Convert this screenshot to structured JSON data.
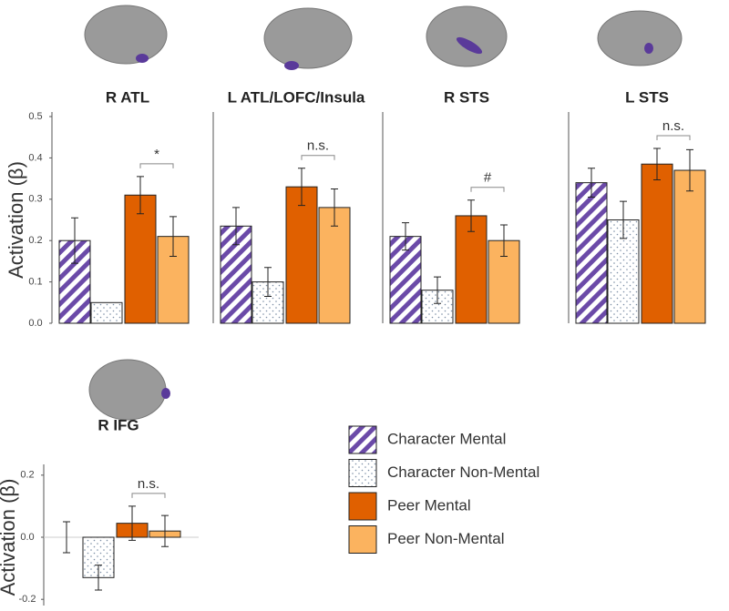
{
  "legend": [
    {
      "name": "Character Mental",
      "color": "#6b4aa8",
      "pattern": "hatch"
    },
    {
      "name": "Character Non-Mental",
      "color": "#7d8fa6",
      "pattern": "dots"
    },
    {
      "name": "Peer Mental",
      "color": "#e06000",
      "pattern": "solid"
    },
    {
      "name": "Peer Non-Mental",
      "color": "#fbb35f",
      "pattern": "solid"
    }
  ],
  "chart_data": [
    {
      "type": "bar",
      "title": "R ATL",
      "ylabel": "Activation (β)",
      "ylim": [
        0,
        0.5
      ],
      "yticks": [
        {
          "value": 0,
          "label": "0.0"
        },
        0.1,
        0.2,
        0.3,
        0.4,
        0.5
      ],
      "values": [
        0.2,
        0.05,
        0.31,
        0.21
      ],
      "errors": [
        0.055,
        null,
        0.045,
        0.048
      ],
      "annotation": "*"
    },
    {
      "type": "bar",
      "title": "L ATL/LOFC/Insula",
      "ylim": [
        0,
        0.5
      ],
      "values": [
        0.235,
        0.1,
        0.33,
        0.28
      ],
      "errors": [
        0.045,
        0.035,
        0.045,
        0.045
      ],
      "annotation": "n.s."
    },
    {
      "type": "bar",
      "title": "R STS",
      "ylim": [
        0,
        0.5
      ],
      "values": [
        0.21,
        0.08,
        0.26,
        0.2
      ],
      "errors": [
        0.033,
        0.032,
        0.038,
        0.038
      ],
      "annotation": "#"
    },
    {
      "type": "bar",
      "title": "L STS",
      "ylim": [
        0,
        0.5
      ],
      "values": [
        0.34,
        0.25,
        0.385,
        0.37
      ],
      "errors": [
        0.035,
        0.045,
        0.038,
        0.05
      ],
      "annotation": "n.s."
    },
    {
      "type": "bar",
      "title": "R IFG",
      "ylabel": "Activation (β)",
      "ylim": [
        -0.22,
        0.22
      ],
      "yticks": [
        -0.2,
        {
          "value": 0,
          "label": "0.0"
        },
        0.2
      ],
      "values": [
        0.0,
        -0.13,
        0.045,
        0.02
      ],
      "errors": [
        0.05,
        0.04,
        0.055,
        0.05
      ],
      "annotation": "n.s."
    }
  ]
}
